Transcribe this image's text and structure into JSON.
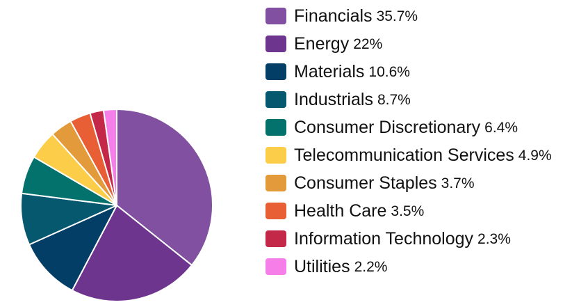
{
  "chart_data": {
    "type": "pie",
    "title": "",
    "slices": [
      {
        "label": "Financials",
        "value": 35.7,
        "value_label": "35.7%",
        "color": "#8150a0"
      },
      {
        "label": "Energy",
        "value": 22,
        "value_label": "22%",
        "color": "#6e358e"
      },
      {
        "label": "Materials",
        "value": 10.6,
        "value_label": "10.6%",
        "color": "#033e66"
      },
      {
        "label": "Industrials",
        "value": 8.7,
        "value_label": "8.7%",
        "color": "#05586e"
      },
      {
        "label": "Consumer Discretionary",
        "value": 6.4,
        "value_label": "6.4%",
        "color": "#04726c"
      },
      {
        "label": "Telecommunication Services",
        "value": 4.9,
        "value_label": "4.9%",
        "color": "#fbcd48"
      },
      {
        "label": "Consumer Staples",
        "value": 3.7,
        "value_label": "3.7%",
        "color": "#e39a3a"
      },
      {
        "label": "Health Care",
        "value": 3.5,
        "value_label": "3.5%",
        "color": "#e85e35"
      },
      {
        "label": "Information Technology",
        "value": 2.3,
        "value_label": "2.3%",
        "color": "#c42849"
      },
      {
        "label": "Utilities",
        "value": 2.2,
        "value_label": "2.2%",
        "color": "#f57ee8"
      }
    ],
    "legend_position": "right"
  }
}
